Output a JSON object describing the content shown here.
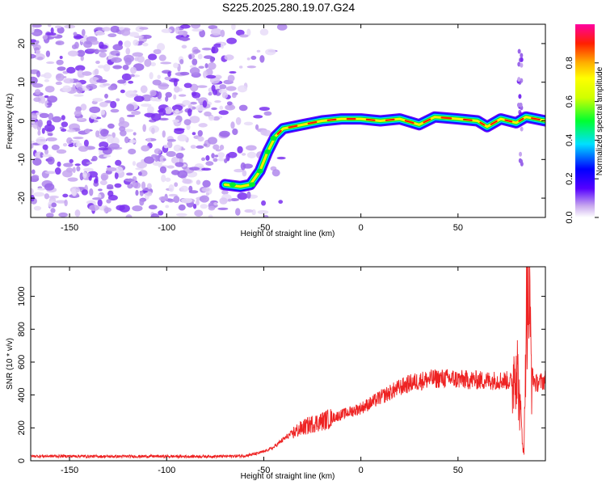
{
  "title": "S225.2025.280.19.07.G24",
  "chart_data": [
    {
      "type": "heatmap",
      "title": "S225.2025.280.19.07.G24",
      "xlabel": "Height of straight line (km)",
      "ylabel": "Frequency (Hz)",
      "xlim": [
        -170,
        95
      ],
      "ylim": [
        -25,
        25
      ],
      "xticks": [
        -150,
        -100,
        -50,
        0,
        50
      ],
      "yticks": [
        -20,
        -10,
        0,
        10,
        20
      ],
      "colorbar": {
        "label": "Normalized spectral amplitude",
        "range": [
          0,
          1
        ],
        "ticks": [
          0.0,
          0.2,
          0.4,
          0.6,
          0.8
        ]
      },
      "ridge": [
        {
          "x": -70,
          "y": -16.5
        },
        {
          "x": -62,
          "y": -17
        },
        {
          "x": -57,
          "y": -16.5
        },
        {
          "x": -52,
          "y": -13
        },
        {
          "x": -48,
          "y": -8
        },
        {
          "x": -44,
          "y": -4
        },
        {
          "x": -40,
          "y": -2
        },
        {
          "x": -30,
          "y": -1
        },
        {
          "x": -20,
          "y": 0
        },
        {
          "x": -10,
          "y": 0.5
        },
        {
          "x": 0,
          "y": 0.5
        },
        {
          "x": 10,
          "y": 0
        },
        {
          "x": 20,
          "y": 0.5
        },
        {
          "x": 30,
          "y": -1
        },
        {
          "x": 38,
          "y": 1
        },
        {
          "x": 50,
          "y": 0.5
        },
        {
          "x": 60,
          "y": 0
        },
        {
          "x": 65,
          "y": -1.5
        },
        {
          "x": 72,
          "y": 0.5
        },
        {
          "x": 80,
          "y": -0.5
        },
        {
          "x": 85,
          "y": 1
        },
        {
          "x": 95,
          "y": 0
        }
      ]
    },
    {
      "type": "line",
      "xlabel": "Height of straight line (km)",
      "ylabel": "SNR (10 * v/v)",
      "xlim": [
        -170,
        95
      ],
      "ylim": [
        0,
        1180
      ],
      "xticks": [
        -150,
        -100,
        -50,
        0,
        50
      ],
      "yticks": [
        0,
        200,
        400,
        600,
        800,
        1000
      ],
      "series": [
        {
          "name": "SNR",
          "color": "#ee2222",
          "x": [
            -170,
            -150,
            -130,
            -110,
            -90,
            -70,
            -60,
            -55,
            -50,
            -45,
            -40,
            -35,
            -30,
            -25,
            -20,
            -15,
            -10,
            -5,
            0,
            5,
            10,
            15,
            20,
            25,
            30,
            35,
            40,
            45,
            50,
            55,
            60,
            65,
            70,
            75,
            78,
            80,
            82,
            84,
            85,
            86,
            88,
            90,
            95
          ],
          "values": [
            28,
            28,
            26,
            27,
            26,
            27,
            30,
            40,
            55,
            80,
            130,
            170,
            200,
            225,
            240,
            260,
            280,
            300,
            320,
            350,
            385,
            415,
            445,
            470,
            485,
            495,
            500,
            500,
            495,
            492,
            490,
            488,
            490,
            488,
            480,
            640,
            300,
            30,
            900,
            1150,
            520,
            470,
            490
          ]
        }
      ]
    }
  ]
}
